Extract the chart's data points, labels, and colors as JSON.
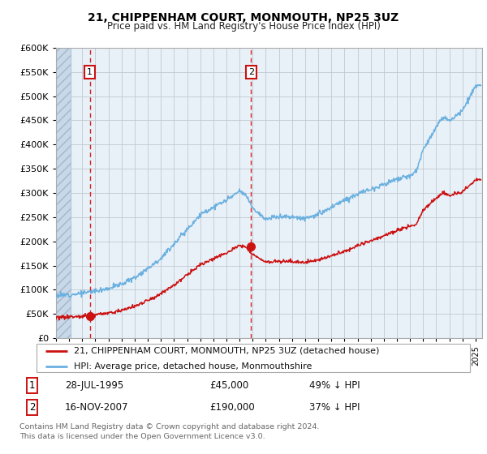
{
  "title": "21, CHIPPENHAM COURT, MONMOUTH, NP25 3UZ",
  "subtitle": "Price paid vs. HM Land Registry's House Price Index (HPI)",
  "legend_line1": "21, CHIPPENHAM COURT, MONMOUTH, NP25 3UZ (detached house)",
  "legend_line2": "HPI: Average price, detached house, Monmouthshire",
  "annotation1_date": "28-JUL-1995",
  "annotation1_price": "£45,000",
  "annotation1_hpi": "49% ↓ HPI",
  "annotation2_date": "16-NOV-2007",
  "annotation2_price": "£190,000",
  "annotation2_hpi": "37% ↓ HPI",
  "footnote": "Contains HM Land Registry data © Crown copyright and database right 2024.\nThis data is licensed under the Open Government Licence v3.0.",
  "sale1_year": 1995.58,
  "sale1_price": 45000,
  "sale2_year": 2007.88,
  "sale2_price": 190000,
  "red_line_color": "#cc1111",
  "blue_line_color": "#6ab0e0",
  "hatch_color": "#c8d8e8",
  "hatch_line_color": "#a0b8cc",
  "grid_color": "#c0c8d0",
  "background_color": "#dce8f0",
  "plot_bg": "#e8f0f8",
  "ylim_max": 600000,
  "footnote_color": "#666666",
  "xmin": 1993,
  "xmax": 2025.5
}
